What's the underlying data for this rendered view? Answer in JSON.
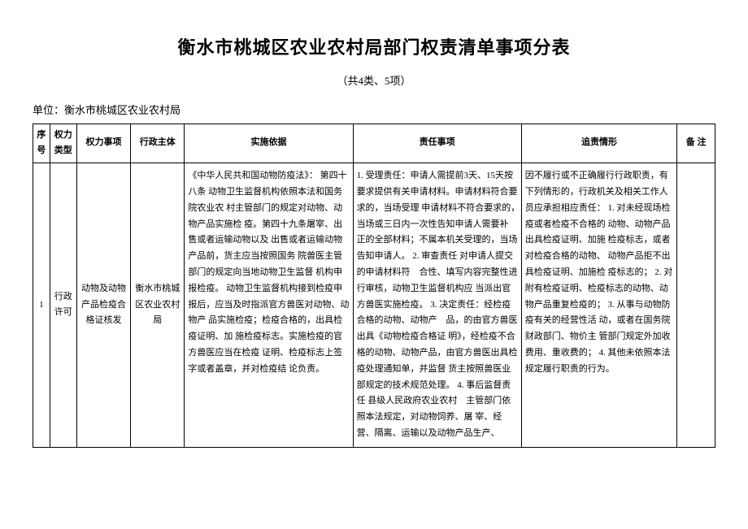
{
  "title": "衡水市桃城区农业农村局部门权责清单事项分表",
  "subtitle": "（共4类、5项）",
  "unit_line": "单位：衡水市桃城区农业农村局",
  "table": {
    "columns": [
      "序号",
      "权力类型",
      "权力事项",
      "行政主体",
      "实施依据",
      "责任事项",
      "追责情形",
      "备 注"
    ],
    "row": {
      "seq": "1",
      "power_type": "行政 许可",
      "matter": "动物及动物 产品检疫合 格证核发",
      "body": "衡水市桃城 区农业农村 局",
      "basis": "《中华人民共和国动物防疫法》： 第四十八条 动物卫生监督机构依照本法和国务院农业农 村主管部门的规定对动物、动物产品实施检 疫。第四十九条屠宰、出售或者运输动物以及 出售或者运输动物产品前，货主应当按照国务 院兽医主管部门的规定向当地动物卫生监督 机构申报检疫。 动物卫生监督机构接到检疫申 报后，应当及时指派官方兽医对动物、动物产 品实施检疫；检疫合格的，出具检疫证明、加 施检疫标志。实施检疫的官方兽医应当在检疫 证明、检疫标志上签字或者盖章，并对检疫结 论负责。",
      "responsibility": "1. 受理责任：申请人需提前3天、15天按 要求提供有关申请材料。申请材料符合要　求的，当场受理 申请材料不符合要求的，　当场或三日内一次性告知申请人需要补　正的全部材料；不属本机关受理的，当场 告知申请人。\n2. 审查责任 对申请人提交的申请材料符　合性、填写内容完整性进行审核，动物卫生监督机构应 当派出官方兽医实施检疫。\n3. 决定责任：经检疫合格的动物、动物产　品，的由官方兽医出具《动物检疫合格证 明》，经检疫不合格的动物、动物产品，由官方兽医出具检疫处理通知单，并监督 货主按照兽医业部规定的技术规范处理。\n4. 事后监督责任 县级人民政府农业农村　主管部门依照本法规定，对动物饲养、屠 宰、经营、隔离、运输以及动物产品生产、",
      "accountability": "因不履行或不正确履行行政职责，有 下列情形的，行政机关及相关工作人 员应承担相应责任：\n1. 对未经现场检疫或者检疫不合格的 动物、动物产品出具检疫证明、加施 检疫标志，或者对检疫合格的动物、 动物产品拒不出具检疫证明、加施检 疫标志的；\n2. 对附有检疫证明、检疫标志的动物、动物产品重复检疫的；\n3. 从事与动物防疫有关的经营性活 动，或者在国务院财政部门、物价主 管部门规定外加收费用、重收费的；\n4. 其他未依照本法规定履行职责的行为。",
      "remark": ""
    }
  },
  "style": {
    "background_color": "#ffffff",
    "text_color": "#000000",
    "border_color": "#000000",
    "title_fontsize": 22,
    "body_fontsize": 11
  }
}
